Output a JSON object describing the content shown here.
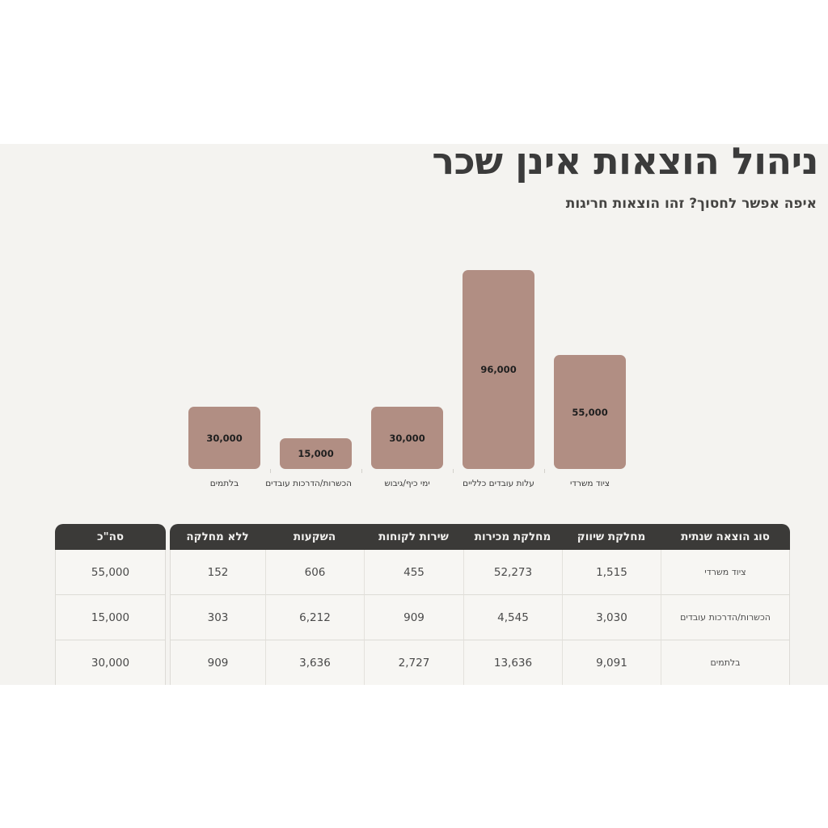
{
  "page": {
    "title": "ניהול הוצאות אינן שכר",
    "subtitle": "איפה אפשר לחסוך? זהו הוצאות חריגות"
  },
  "colors": {
    "page_background": "#ffffff",
    "panel_background": "#f4f3f0",
    "bar_fill": "#b18e83",
    "table_header_background": "#3b3a38",
    "table_header_text": "#f2f1ef",
    "cell_background": "#f7f6f3",
    "cell_border": "#dddbd6",
    "title_text": "#3b3b3b",
    "cell_text": "#4a4a4a"
  },
  "chart_data": [
    {
      "type": "bar",
      "title": "",
      "xlabel": "",
      "ylabel": "",
      "categories": [
        "ציוד משרדי",
        "עלות עובדים כלליים",
        "ימי כיף/גיבוש",
        "הכשרות/הדרכות עובדים",
        "בלתמים"
      ],
      "values": [
        55000,
        96000,
        30000,
        15000,
        30000
      ],
      "value_labels": [
        "55,000",
        "96,000",
        "30,000",
        "15,000",
        "30,000"
      ],
      "ylim": [
        0,
        100000
      ],
      "grid": false,
      "legend": false,
      "bar_color": "#b18e83",
      "layout": "categories listed right-to-left as displayed (RTL)"
    },
    {
      "type": "table",
      "headers": [
        "סוג הוצאה שנתית",
        "מחלקת שיווק",
        "מחלקת מכירות",
        "שירות לקוחות",
        "השקעות",
        "ללא מחלקה",
        "סה\"כ"
      ],
      "rows": [
        [
          "ציוד משרדי",
          "1,515",
          "52,273",
          "455",
          "606",
          "152",
          "55,000"
        ],
        [
          "הכשרות/הדרכות עובדים",
          "3,030",
          "4,545",
          "909",
          "6,212",
          "303",
          "15,000"
        ],
        [
          "בלתמים",
          "9,091",
          "13,636",
          "2,727",
          "3,636",
          "909",
          "30,000"
        ]
      ]
    }
  ]
}
